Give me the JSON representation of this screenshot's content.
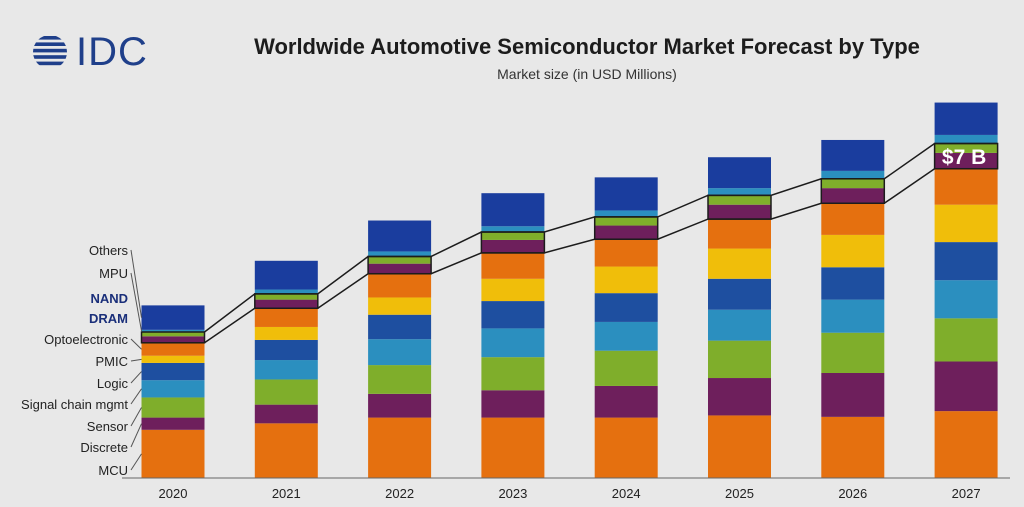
{
  "logo": {
    "text": "IDC"
  },
  "chart_data": {
    "type": "bar",
    "stacked": true,
    "title": "Worldwide Automotive Semiconductor Market Forecast by Type",
    "subtitle": "Market size (in USD Millions)",
    "xlabel": "",
    "ylabel": "",
    "categories": [
      "2020",
      "2021",
      "2022",
      "2023",
      "2024",
      "2025",
      "2026",
      "2027"
    ],
    "series": [
      {
        "name": "MCU",
        "color": "#e5700f",
        "values": [
          6.7,
          7.6,
          8.4,
          8.4,
          8.4,
          8.7,
          8.5,
          9.3
        ]
      },
      {
        "name": "Discrete",
        "color": "#6e1f5c",
        "values": [
          1.7,
          2.6,
          3.3,
          3.8,
          4.4,
          5.2,
          6.1,
          6.9
        ]
      },
      {
        "name": "Sensor",
        "color": "#7fae2b",
        "values": [
          2.8,
          3.5,
          4.0,
          4.6,
          4.9,
          5.2,
          5.6,
          6.0
        ]
      },
      {
        "name": "Signal chain mgmt",
        "color": "#2b8fbf",
        "values": [
          2.4,
          2.7,
          3.6,
          4.0,
          4.0,
          4.3,
          4.6,
          5.3
        ]
      },
      {
        "name": "Logic",
        "color": "#1e4fa0",
        "values": [
          2.4,
          2.8,
          3.4,
          3.8,
          4.0,
          4.3,
          4.5,
          5.3
        ]
      },
      {
        "name": "PMIC",
        "color": "#f0be0a",
        "values": [
          1.0,
          1.8,
          2.4,
          3.1,
          3.7,
          4.2,
          4.5,
          5.2
        ]
      },
      {
        "name": "Optoelectronic",
        "color": "#e5700f",
        "values": [
          1.8,
          2.6,
          3.3,
          3.6,
          3.8,
          4.1,
          4.4,
          5.0
        ]
      },
      {
        "name": "DRAM",
        "color": "#6e1f5c",
        "values": [
          0.9,
          1.2,
          1.4,
          1.8,
          1.9,
          2.0,
          2.1,
          2.2
        ]
      },
      {
        "name": "NAND",
        "color": "#7fae2b",
        "values": [
          0.6,
          0.8,
          1.0,
          1.1,
          1.2,
          1.3,
          1.3,
          1.3
        ]
      },
      {
        "name": "MPU",
        "color": "#2b8fbf",
        "values": [
          0.3,
          0.6,
          0.7,
          0.8,
          0.9,
          1.0,
          1.1,
          1.2
        ]
      },
      {
        "name": "Others",
        "color": "#1a3d9e",
        "values": [
          3.4,
          4.0,
          4.3,
          4.6,
          4.6,
          4.3,
          4.3,
          4.5
        ]
      }
    ],
    "highlighted_series": [
      "NAND",
      "DRAM"
    ],
    "annotation": {
      "text": "$7 B",
      "category": "2027"
    },
    "ylim": [
      0,
      52
    ],
    "grid": false,
    "legend": "left"
  }
}
